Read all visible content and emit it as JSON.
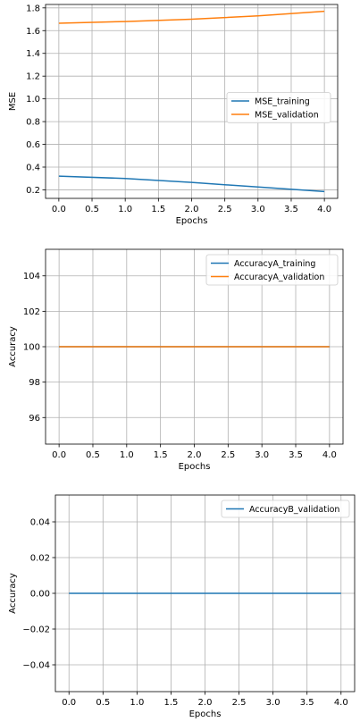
{
  "chart_data": [
    {
      "type": "line",
      "xlabel": "Epochs",
      "ylabel": "MSE",
      "xlim": [
        -0.2,
        4.2
      ],
      "ylim": [
        0.125,
        1.83
      ],
      "xticks": [
        0.0,
        0.5,
        1.0,
        1.5,
        2.0,
        2.5,
        3.0,
        3.5,
        4.0
      ],
      "xtick_labels": [
        "0.0",
        "0.5",
        "1.0",
        "1.5",
        "2.0",
        "2.5",
        "3.0",
        "3.5",
        "4.0"
      ],
      "yticks": [
        0.2,
        0.4,
        0.6,
        0.8,
        1.0,
        1.2,
        1.4,
        1.6,
        1.8
      ],
      "ytick_labels": [
        "0.2",
        "0.4",
        "0.6",
        "0.8",
        "1.0",
        "1.2",
        "1.4",
        "1.6",
        "1.8"
      ],
      "grid": true,
      "legend_position": "center-right",
      "x": [
        0,
        1,
        2,
        3,
        4
      ],
      "series": [
        {
          "name": "MSE_training",
          "color": "#1f77b4",
          "values": [
            0.32,
            0.3,
            0.265,
            0.225,
            0.185
          ]
        },
        {
          "name": "MSE_validation",
          "color": "#ff7f0e",
          "values": [
            1.665,
            1.68,
            1.7,
            1.73,
            1.77
          ]
        }
      ]
    },
    {
      "type": "line",
      "xlabel": "Epochs",
      "ylabel": "Accuracy",
      "xlim": [
        -0.2,
        4.2
      ],
      "ylim": [
        94.5,
        105.5
      ],
      "xticks": [
        0.0,
        0.5,
        1.0,
        1.5,
        2.0,
        2.5,
        3.0,
        3.5,
        4.0
      ],
      "xtick_labels": [
        "0.0",
        "0.5",
        "1.0",
        "1.5",
        "2.0",
        "2.5",
        "3.0",
        "3.5",
        "4.0"
      ],
      "yticks": [
        96,
        98,
        100,
        102,
        104
      ],
      "ytick_labels": [
        "96",
        "98",
        "100",
        "102",
        "104"
      ],
      "grid": true,
      "legend_position": "upper-right",
      "x": [
        0,
        1,
        2,
        3,
        4
      ],
      "series": [
        {
          "name": "AccuracyA_training",
          "color": "#1f77b4",
          "values": [
            100,
            100,
            100,
            100,
            100
          ]
        },
        {
          "name": "AccuracyA_validation",
          "color": "#ff7f0e",
          "values": [
            100,
            100,
            100,
            100,
            100
          ]
        }
      ]
    },
    {
      "type": "line",
      "xlabel": "Epochs",
      "ylabel": "Accuracy",
      "xlim": [
        -0.2,
        4.2
      ],
      "ylim": [
        -0.055,
        0.055
      ],
      "xticks": [
        0.0,
        0.5,
        1.0,
        1.5,
        2.0,
        2.5,
        3.0,
        3.5,
        4.0
      ],
      "xtick_labels": [
        "0.0",
        "0.5",
        "1.0",
        "1.5",
        "2.0",
        "2.5",
        "3.0",
        "3.5",
        "4.0"
      ],
      "yticks": [
        -0.04,
        -0.02,
        0.0,
        0.02,
        0.04
      ],
      "ytick_labels": [
        "−0.04",
        "−0.02",
        "0.00",
        "0.02",
        "0.04"
      ],
      "grid": true,
      "legend_position": "upper-right",
      "x": [
        0,
        1,
        2,
        3,
        4
      ],
      "series": [
        {
          "name": "AccuracyB_validation",
          "color": "#1f77b4",
          "values": [
            0,
            0,
            0,
            0,
            0
          ]
        }
      ]
    }
  ]
}
